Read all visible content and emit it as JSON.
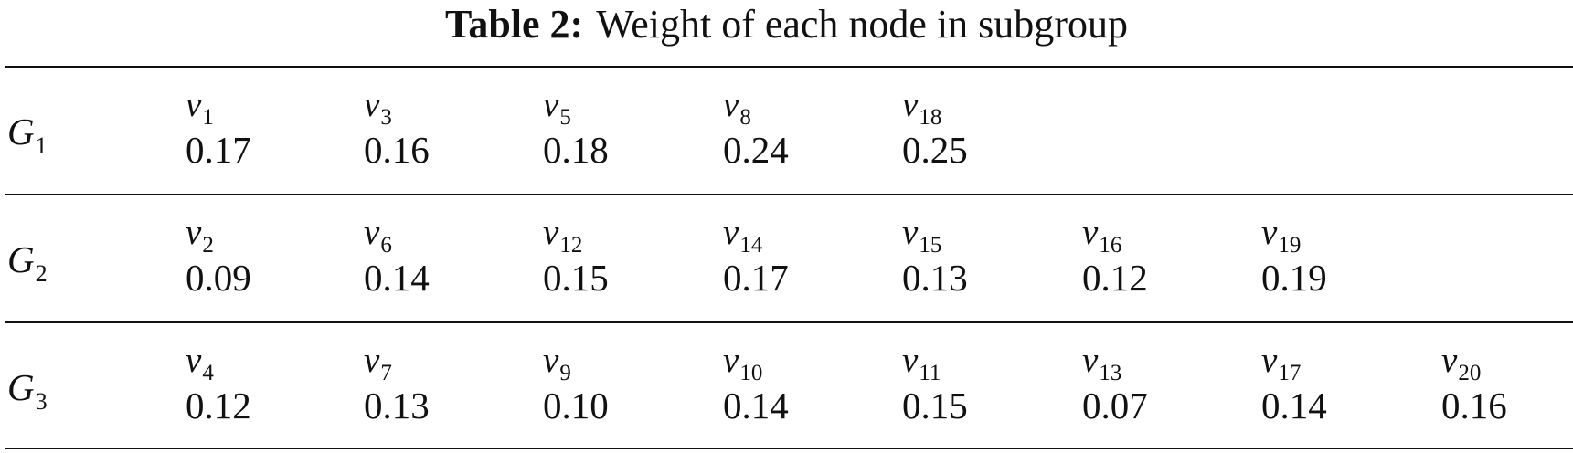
{
  "caption": {
    "label": "Table 2:",
    "text": "Weight of each node in subgroup"
  },
  "groups": [
    {
      "name": "G",
      "sub": "1",
      "nodes": [
        {
          "name": "v",
          "sub": "1",
          "weight": "0.17"
        },
        {
          "name": "v",
          "sub": "3",
          "weight": "0.16"
        },
        {
          "name": "v",
          "sub": "5",
          "weight": "0.18"
        },
        {
          "name": "v",
          "sub": "8",
          "weight": "0.24"
        },
        {
          "name": "v",
          "sub": "18",
          "weight": "0.25"
        }
      ]
    },
    {
      "name": "G",
      "sub": "2",
      "nodes": [
        {
          "name": "v",
          "sub": "2",
          "weight": "0.09"
        },
        {
          "name": "v",
          "sub": "6",
          "weight": "0.14"
        },
        {
          "name": "v",
          "sub": "12",
          "weight": "0.15"
        },
        {
          "name": "v",
          "sub": "14",
          "weight": "0.17"
        },
        {
          "name": "v",
          "sub": "15",
          "weight": "0.13"
        },
        {
          "name": "v",
          "sub": "16",
          "weight": "0.12"
        },
        {
          "name": "v",
          "sub": "19",
          "weight": "0.19"
        }
      ]
    },
    {
      "name": "G",
      "sub": "3",
      "nodes": [
        {
          "name": "v",
          "sub": "4",
          "weight": "0.12"
        },
        {
          "name": "v",
          "sub": "7",
          "weight": "0.13"
        },
        {
          "name": "v",
          "sub": "9",
          "weight": "0.10"
        },
        {
          "name": "v",
          "sub": "10",
          "weight": "0.14"
        },
        {
          "name": "v",
          "sub": "11",
          "weight": "0.15"
        },
        {
          "name": "v",
          "sub": "13",
          "weight": "0.07"
        },
        {
          "name": "v",
          "sub": "17",
          "weight": "0.14"
        },
        {
          "name": "v",
          "sub": "20",
          "weight": "0.16"
        }
      ]
    }
  ]
}
